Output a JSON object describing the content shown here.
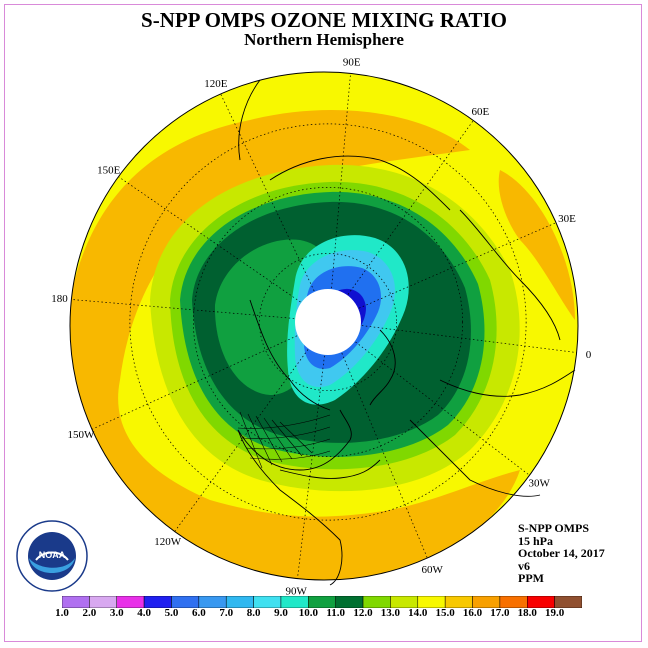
{
  "header": {
    "title": "S-NPP OMPS OZONE MIXING RATIO",
    "subtitle": "Northern Hemisphere"
  },
  "longitude_labels": [
    "90E",
    "60E",
    "30E",
    "0",
    "30W",
    "60W",
    "90W",
    "120W",
    "150W",
    "180",
    "150E",
    "120E"
  ],
  "info": {
    "line1": "S-NPP OMPS",
    "line2": "15 hPa",
    "line3": "October 14, 2017",
    "line4": "v6",
    "line5": "PPM"
  },
  "logo": {
    "text": "NOAA",
    "ring_text": "NATIONAL OCEANIC AND ATMOSPHERIC ADMINISTRATION U.S. DEPARTMENT OF COMMERCE"
  },
  "colorbar": {
    "ticks": [
      "1.0",
      "2.0",
      "3.0",
      "4.0",
      "5.0",
      "6.0",
      "7.0",
      "8.0",
      "9.0",
      "10.0",
      "11.0",
      "12.0",
      "13.0",
      "14.0",
      "15.0",
      "16.0",
      "17.0",
      "18.0",
      "19.0"
    ],
    "colors": [
      "#b070f0",
      "#d8a8f0",
      "#e830e8",
      "#2020f0",
      "#3070f0",
      "#3898f0",
      "#30b8f0",
      "#40e0f0",
      "#20e8c8",
      "#10a040",
      "#007030",
      "#80d800",
      "#c8e800",
      "#f8f800",
      "#f8c800",
      "#f8a000",
      "#f87000",
      "#f80000",
      "#905030"
    ]
  },
  "map_colors": {
    "ocean_ring": "#f8f800",
    "outer_orange": "#f8b800",
    "band_light_green": "#c8e800",
    "band_green": "#80d800",
    "band_mid_green": "#10a040",
    "band_dark_green": "#006030",
    "band_cyan": "#20e8c8",
    "band_light_blue": "#40c8f0",
    "band_blue": "#2070f0",
    "band_dark_blue": "#1010d0",
    "pole_gap": "#ffffff"
  }
}
